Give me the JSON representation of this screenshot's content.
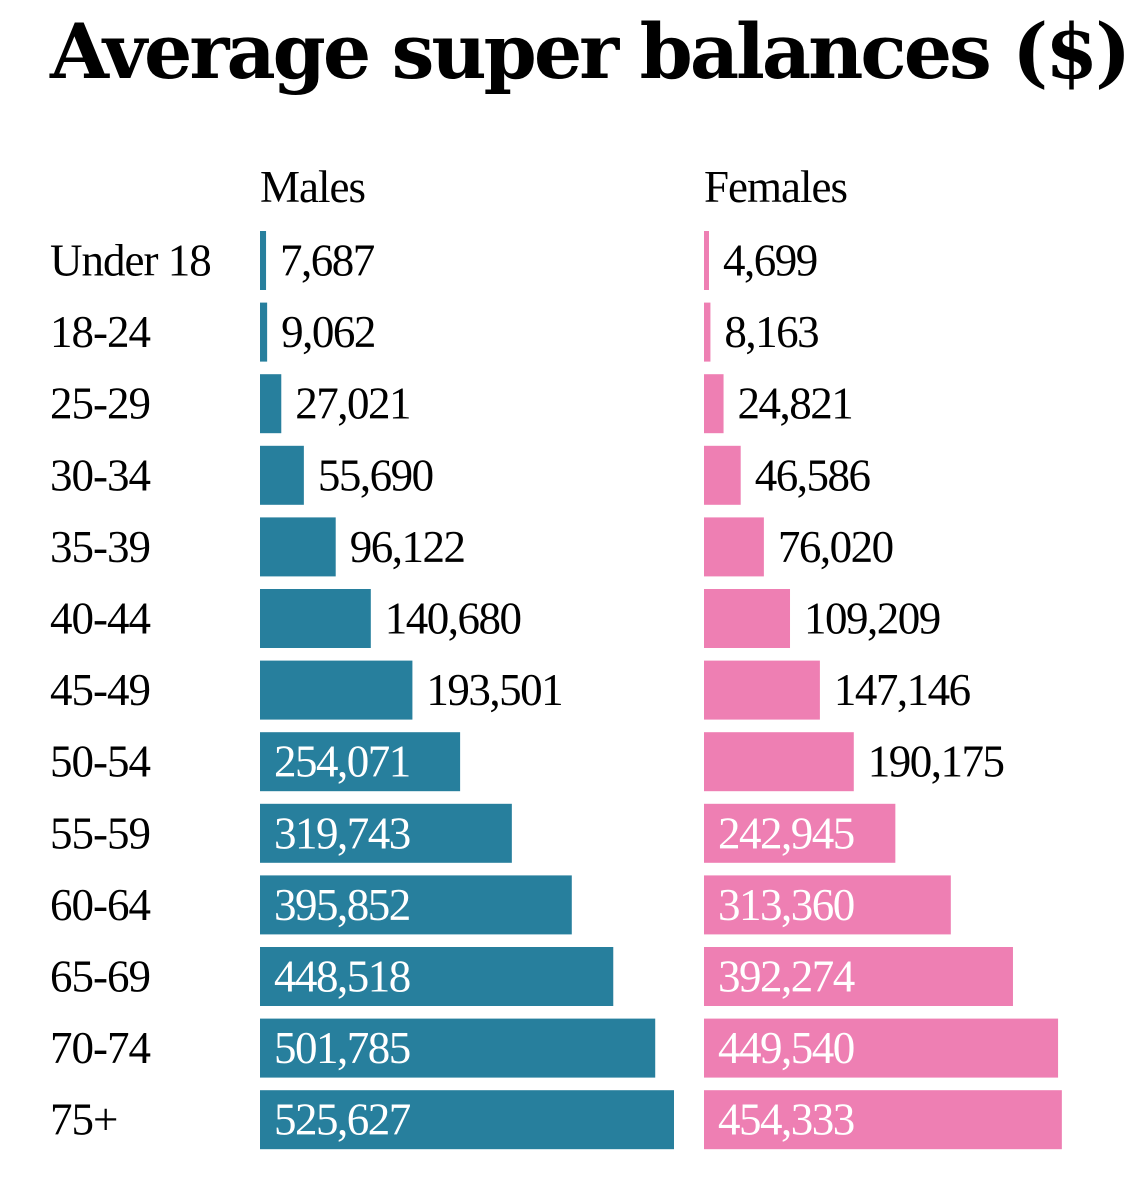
{
  "chart_data": {
    "type": "bar",
    "title": "Average super balances ($)",
    "categories": [
      "Under 18",
      "18-24",
      "25-29",
      "30-34",
      "35-39",
      "40-44",
      "45-49",
      "50-54",
      "55-59",
      "60-64",
      "65-69",
      "70-74",
      "75+"
    ],
    "series": [
      {
        "name": "Males",
        "color": "#277f9d",
        "values": [
          7687,
          9062,
          27021,
          55690,
          96122,
          140680,
          193501,
          254071,
          319743,
          395852,
          448518,
          501785,
          525627
        ],
        "labels": [
          "7,687",
          "9,062",
          "27,021",
          "55,690",
          "96,122",
          "140,680",
          "193,501",
          "254,071",
          "319,743",
          "395,852",
          "448,518",
          "501,785",
          "525,627"
        ]
      },
      {
        "name": "Females",
        "color": "#ee7fb3",
        "values": [
          4699,
          8163,
          24821,
          46586,
          76020,
          109209,
          147146,
          190175,
          242945,
          313360,
          392274,
          449540,
          454333
        ],
        "labels": [
          "4,699",
          "8,163",
          "24,821",
          "46,586",
          "76,020",
          "109,209",
          "147,146",
          "190,175",
          "242,945",
          "313,360",
          "392,274",
          "449,540",
          "454,333"
        ]
      }
    ],
    "orientation": "horizontal",
    "layout": "small-multiples side by side",
    "grid": false,
    "legend": "none (panel headers)"
  }
}
